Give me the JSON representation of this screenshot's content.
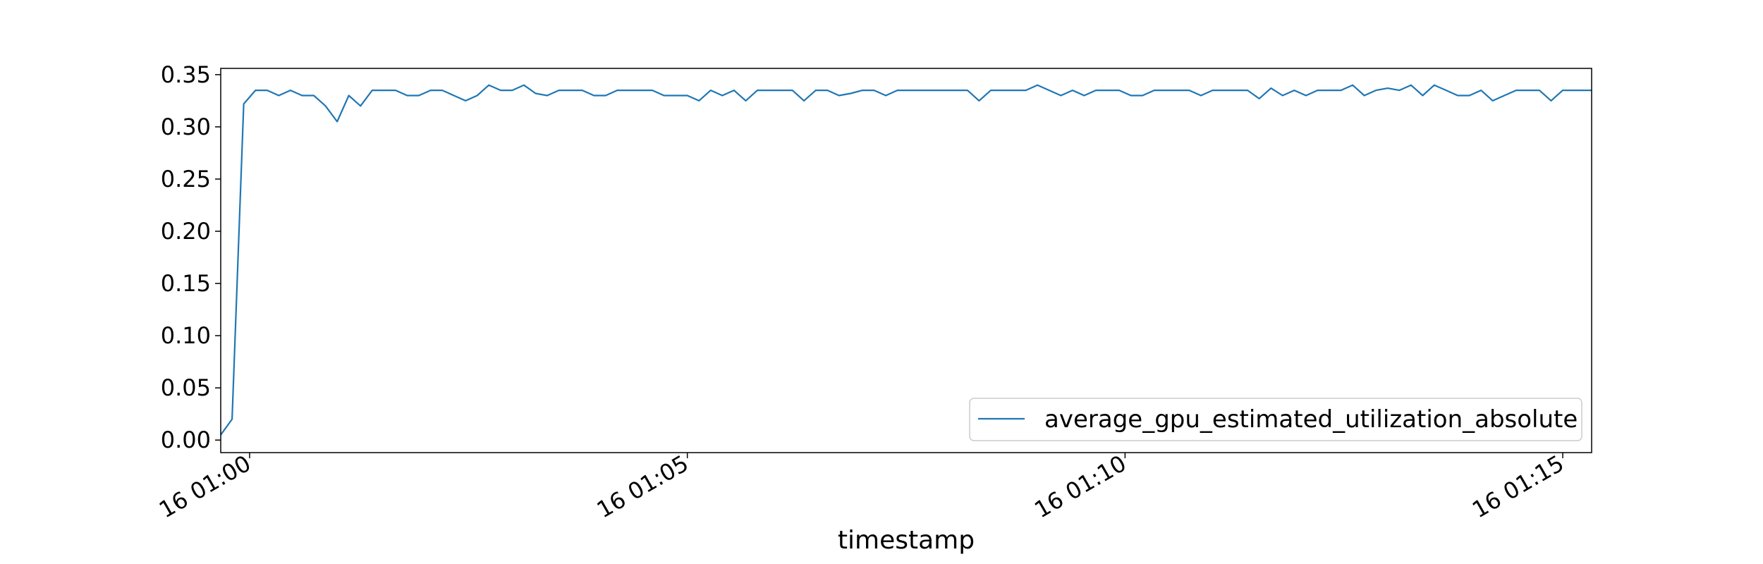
{
  "chart_data": {
    "type": "line",
    "title": "",
    "xlabel": "timestamp",
    "ylabel": "",
    "x_is_time": true,
    "x_tick_labels": [
      "16 01:00",
      "16 01:05",
      "16 01:10",
      "16 01:15"
    ],
    "x_ticks_minutes": [
      0,
      5,
      10,
      15
    ],
    "xlim_minutes": [
      -0.33,
      15.33
    ],
    "y_ticks": [
      0.0,
      0.05,
      0.1,
      0.15,
      0.2,
      0.25,
      0.3,
      0.35
    ],
    "y_tick_labels": [
      "0.00",
      "0.05",
      "0.10",
      "0.15",
      "0.20",
      "0.25",
      "0.30",
      "0.35"
    ],
    "ylim": [
      -0.012,
      0.356
    ],
    "grid": false,
    "legend_position": "lower-right",
    "series": [
      {
        "name": "average_gpu_estimated_utilization_absolute",
        "color": "#1f77b4",
        "x_minutes": [
          -0.33,
          -0.2,
          -0.067,
          0.067,
          0.2,
          0.333,
          0.467,
          0.6,
          0.733,
          0.867,
          1.0,
          1.133,
          1.267,
          1.4,
          1.533,
          1.667,
          1.8,
          1.933,
          2.067,
          2.2,
          2.333,
          2.467,
          2.6,
          2.733,
          2.867,
          3.0,
          3.133,
          3.267,
          3.4,
          3.533,
          3.667,
          3.8,
          3.933,
          4.067,
          4.2,
          4.333,
          4.467,
          4.6,
          4.733,
          4.867,
          5.0,
          5.133,
          5.267,
          5.4,
          5.533,
          5.667,
          5.8,
          5.933,
          6.067,
          6.2,
          6.333,
          6.467,
          6.6,
          6.733,
          6.867,
          7.0,
          7.133,
          7.267,
          7.4,
          7.533,
          7.667,
          7.8,
          7.933,
          8.067,
          8.2,
          8.333,
          8.467,
          8.6,
          8.733,
          8.867,
          9.0,
          9.133,
          9.267,
          9.4,
          9.533,
          9.667,
          9.8,
          9.933,
          10.067,
          10.2,
          10.333,
          10.467,
          10.6,
          10.733,
          10.867,
          11.0,
          11.133,
          11.267,
          11.4,
          11.533,
          11.667,
          11.8,
          11.933,
          12.067,
          12.2,
          12.333,
          12.467,
          12.6,
          12.733,
          12.867,
          13.0,
          13.133,
          13.267,
          13.4,
          13.533,
          13.667,
          13.8,
          13.933,
          14.067,
          14.2,
          14.333,
          14.467,
          14.6,
          14.733,
          14.867,
          15.0,
          15.133,
          15.333
        ],
        "values": [
          0.005,
          0.02,
          0.322,
          0.335,
          0.335,
          0.33,
          0.335,
          0.33,
          0.33,
          0.32,
          0.305,
          0.33,
          0.32,
          0.335,
          0.335,
          0.335,
          0.33,
          0.33,
          0.335,
          0.335,
          0.33,
          0.325,
          0.33,
          0.34,
          0.335,
          0.335,
          0.34,
          0.332,
          0.33,
          0.335,
          0.335,
          0.335,
          0.33,
          0.33,
          0.335,
          0.335,
          0.335,
          0.335,
          0.33,
          0.33,
          0.33,
          0.325,
          0.335,
          0.33,
          0.335,
          0.325,
          0.335,
          0.335,
          0.335,
          0.335,
          0.325,
          0.335,
          0.335,
          0.33,
          0.332,
          0.335,
          0.335,
          0.33,
          0.335,
          0.335,
          0.335,
          0.335,
          0.335,
          0.335,
          0.335,
          0.325,
          0.335,
          0.335,
          0.335,
          0.335,
          0.34,
          0.335,
          0.33,
          0.335,
          0.33,
          0.335,
          0.335,
          0.335,
          0.33,
          0.33,
          0.335,
          0.335,
          0.335,
          0.335,
          0.33,
          0.335,
          0.335,
          0.335,
          0.335,
          0.327,
          0.337,
          0.33,
          0.335,
          0.33,
          0.335,
          0.335,
          0.335,
          0.34,
          0.33,
          0.335,
          0.337,
          0.335,
          0.34,
          0.33,
          0.34,
          0.335,
          0.33,
          0.33,
          0.335,
          0.325,
          0.33,
          0.335,
          0.335,
          0.335,
          0.325,
          0.335,
          0.335,
          0.335
        ]
      }
    ]
  }
}
